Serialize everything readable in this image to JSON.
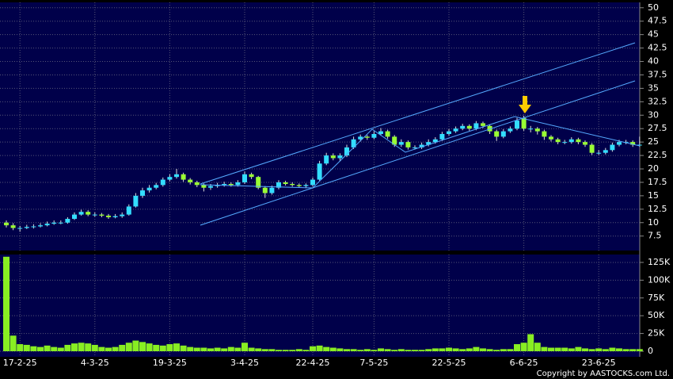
{
  "chart_data": [
    {
      "type": "candlestick",
      "open": [
        10,
        9.5,
        9,
        9,
        9.2,
        9.3,
        9.5,
        9.8,
        10,
        10,
        10.7,
        11.5,
        12,
        11.5,
        11.5,
        11.3,
        11,
        11.2,
        11.5,
        13,
        15,
        16,
        16.5,
        17,
        18,
        18.5,
        19,
        18,
        17.5,
        17,
        16.5,
        16.8,
        17,
        17.2,
        17,
        17.5,
        19,
        18.5,
        16.5,
        15.5,
        16.5,
        17.5,
        17.2,
        17,
        16.8,
        17,
        18,
        21,
        22.5,
        22,
        22.5,
        24,
        25.5,
        26,
        25.8,
        26.5,
        27,
        26,
        24.5,
        25,
        24,
        24,
        24.5,
        25,
        25.5,
        26.5,
        27,
        27.5,
        28,
        27.5,
        28.5,
        28,
        27,
        26,
        27,
        27.5,
        29.5,
        27.5,
        27.5,
        27,
        26,
        25.5,
        25,
        25,
        25.5,
        25,
        24.5,
        23,
        23,
        23.5,
        24.5,
        25,
        25,
        24.5
      ],
      "high": [
        10.4,
        9.9,
        9.4,
        9.6,
        9.7,
        9.9,
        10.2,
        10.4,
        10.4,
        11,
        11.9,
        12.4,
        12.3,
        11.9,
        11.8,
        11.6,
        11.6,
        11.9,
        13.4,
        15.5,
        16.5,
        17,
        17.4,
        18.4,
        19,
        20,
        19.3,
        18.3,
        17.8,
        17.3,
        17.2,
        17.4,
        17.6,
        17.5,
        17.9,
        19.5,
        19.3,
        18.7,
        16.8,
        16.9,
        17.9,
        17.8,
        17.5,
        17.3,
        17.3,
        18.4,
        21.5,
        23,
        22.9,
        22.9,
        24.5,
        26,
        26.4,
        26.3,
        27,
        27.6,
        27.3,
        26.3,
        25.5,
        25.3,
        24.4,
        24.9,
        25.5,
        25.9,
        26.9,
        27.4,
        27.9,
        28.4,
        28.3,
        28.9,
        28.8,
        28.3,
        27.3,
        27.4,
        27.9,
        29.5,
        29.9,
        28,
        27.8,
        27.3,
        26.3,
        25.8,
        25.4,
        25.9,
        25.8,
        25.3,
        24.8,
        23.5,
        23.9,
        24.9,
        25.4,
        25.4,
        25.3,
        26
      ],
      "low": [
        9.1,
        8.6,
        8.3,
        8.8,
        8.9,
        9.1,
        9.3,
        9.6,
        9.7,
        9.8,
        10.5,
        11.3,
        11.2,
        11.1,
        11,
        10.7,
        10.8,
        10.9,
        11.3,
        12.8,
        14.6,
        15.6,
        16.2,
        16.7,
        17.7,
        18.2,
        17.6,
        17.1,
        16.6,
        15.8,
        16.1,
        16.5,
        16.7,
        16.7,
        16.7,
        17.2,
        18.1,
        16.2,
        14.6,
        15.2,
        16.2,
        16.9,
        16.7,
        16.5,
        16.4,
        16.7,
        17.8,
        20.7,
        21.6,
        21.4,
        22.2,
        23.7,
        25.1,
        25.4,
        25.5,
        26.2,
        25.6,
        24.1,
        24.1,
        23.6,
        23.6,
        23.7,
        24.2,
        24.7,
        25.2,
        26.2,
        26.7,
        27.2,
        27.1,
        27.2,
        27.6,
        26.5,
        25.2,
        25.7,
        26.7,
        27.2,
        27.1,
        26.8,
        26.4,
        25.4,
        25.1,
        24.6,
        24.6,
        24.7,
        24.6,
        24.1,
        22.6,
        22.6,
        22.7,
        23.2,
        24.2,
        24.6,
        24.1,
        24.1
      ],
      "close": [
        9.5,
        9,
        9,
        9.2,
        9.3,
        9.5,
        9.8,
        10,
        10,
        10.7,
        11.5,
        12,
        11.5,
        11.5,
        11.3,
        11,
        11.2,
        11.5,
        13,
        15,
        16,
        16.5,
        17,
        18,
        18.5,
        19,
        18,
        17.5,
        17,
        16.5,
        16.8,
        17,
        17.2,
        17,
        17.5,
        19,
        18.5,
        16.5,
        15.5,
        16.5,
        17.5,
        17.2,
        17,
        16.8,
        17,
        18,
        21,
        22.5,
        22,
        22.5,
        24,
        25.5,
        26,
        25.8,
        26.5,
        27,
        26,
        24.5,
        25,
        24,
        24,
        24.5,
        25,
        25.5,
        26.5,
        27,
        27.5,
        28,
        27.5,
        28.5,
        28,
        27,
        26,
        27,
        27.5,
        29,
        27.5,
        27.5,
        27,
        26,
        25.5,
        25,
        25,
        25.5,
        25,
        24.5,
        23,
        23,
        23.5,
        24.5,
        25,
        25,
        24.5,
        24.5
      ],
      "up_color": "#33ddff",
      "down_color": "#99ff33",
      "ylim": [
        4.8,
        51
      ],
      "yticks": [
        7.5,
        10,
        12.5,
        15,
        17.5,
        20,
        22.5,
        25,
        27.5,
        30,
        32.5,
        35,
        37.5,
        40,
        42.5,
        45,
        47.5,
        50
      ],
      "grid": true
    },
    {
      "type": "bar",
      "categories": [
        null,
        null,
        "17-2-25",
        null,
        null,
        null,
        null,
        null,
        null,
        null,
        null,
        null,
        null,
        "4-3-25",
        null,
        null,
        null,
        null,
        null,
        null,
        null,
        null,
        null,
        null,
        "19-3-25",
        null,
        null,
        null,
        null,
        null,
        null,
        null,
        null,
        null,
        null,
        "3-4-25",
        null,
        null,
        null,
        null,
        null,
        null,
        null,
        null,
        null,
        "22-4-25",
        null,
        null,
        null,
        null,
        null,
        null,
        null,
        null,
        "7-5-25",
        null,
        null,
        null,
        null,
        null,
        null,
        null,
        null,
        null,
        null,
        "22-5-25",
        null,
        null,
        null,
        null,
        null,
        null,
        null,
        null,
        null,
        null,
        "6-6-25",
        null,
        null,
        null,
        null,
        null,
        null,
        null,
        null,
        null,
        null,
        "23-6-25",
        null,
        null,
        null,
        null,
        null,
        null
      ],
      "values": [
        133000,
        22000,
        10000,
        9000,
        7000,
        6000,
        8000,
        6000,
        5000,
        9000,
        11000,
        12000,
        11000,
        9000,
        6000,
        5000,
        6000,
        9000,
        12000,
        15000,
        13000,
        11000,
        9000,
        8000,
        10000,
        11000,
        8000,
        6000,
        5000,
        5000,
        4000,
        5000,
        4000,
        6000,
        5000,
        12000,
        5000,
        4000,
        3000,
        3000,
        2000,
        2000,
        2000,
        3000,
        2000,
        7000,
        8000,
        6000,
        5000,
        4000,
        3000,
        3000,
        2000,
        3000,
        2000,
        4000,
        3000,
        2000,
        3000,
        2000,
        2000,
        2000,
        3000,
        4000,
        4000,
        5000,
        4000,
        3000,
        4000,
        6000,
        4000,
        3000,
        2000,
        3000,
        3000,
        10000,
        12000,
        24000,
        12000,
        6000,
        5000,
        5000,
        5000,
        4000,
        6000,
        4000,
        3000,
        4000,
        3000,
        5000,
        4000,
        3000,
        3000,
        3000
      ],
      "color": "#88ee22",
      "ylim": [
        0,
        135000
      ],
      "yticks": [
        0,
        {
          "value": 25000,
          "label": "25K"
        },
        {
          "value": 50000,
          "label": "50K"
        },
        {
          "value": 75000,
          "label": "75K"
        },
        {
          "value": 100000,
          "label": "100K"
        },
        {
          "value": 125000,
          "label": "125K"
        }
      ],
      "grid": true
    }
  ],
  "footer": "Copyright by AASTOCKS.com Ltd."
}
